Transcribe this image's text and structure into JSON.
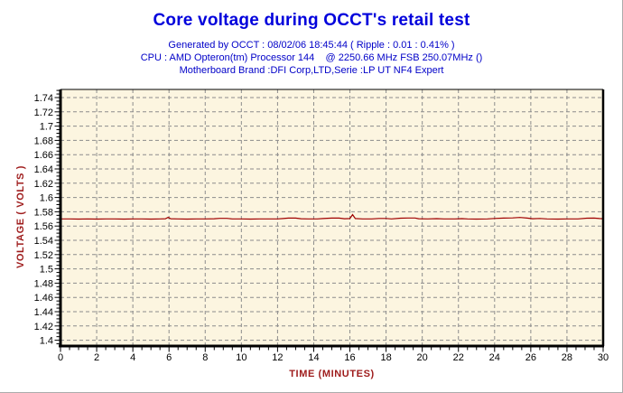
{
  "page": {
    "title": "Core voltage during OCCT's retail test",
    "subtitle_lines": [
      "Generated by OCCT : 08/02/06 18:45:44 ( Ripple : 0.01 : 0.41% )",
      "CPU : AMD Opteron(tm) Processor 144    @ 2250.66 MHz FSB 250.07MHz ()",
      "Motherboard Brand :DFI Corp,LTD,Serie :LP UT NF4 Expert"
    ]
  },
  "colors": {
    "title_blue": "#0000dc",
    "subtitle_blue": "#0000c8",
    "axis_label_red": "#9e1b1b",
    "line_red": "#a00000",
    "plot_background": "#fcf5e0",
    "gridline_gray": "#8c8c8c",
    "plot_border_black": "#000000",
    "page_border_gray": "#ababab"
  },
  "chart_data": {
    "type": "line",
    "title": "Core voltage during OCCT's retail test",
    "xlabel": "TIME (MINUTES)",
    "ylabel": "VOLTAGE ( VOLTS )",
    "xlim": [
      0,
      30
    ],
    "ylim": [
      1.392,
      1.751
    ],
    "grid": "both axes, gray dashed",
    "legend_position": "none",
    "x_ticks": [
      0,
      2,
      4,
      6,
      8,
      10,
      12,
      14,
      16,
      18,
      20,
      22,
      24,
      26,
      28,
      30
    ],
    "x_tick_labels": [
      "0",
      "2",
      "4",
      "6",
      "8",
      "10",
      "12",
      "14",
      "16",
      "18",
      "20",
      "22",
      "24",
      "26",
      "28",
      "30"
    ],
    "x_minor_step": 0.5,
    "y_ticks": [
      1.4,
      1.42,
      1.44,
      1.46,
      1.48,
      1.5,
      1.52,
      1.54,
      1.56,
      1.58,
      1.6,
      1.62,
      1.64,
      1.66,
      1.68,
      1.7,
      1.72,
      1.74
    ],
    "y_tick_labels": [
      "1.4",
      "1.42",
      "1.44",
      "1.46",
      "1.48",
      "1.5",
      "1.52",
      "1.54",
      "1.56",
      "1.58",
      "1.6",
      "1.62",
      "1.64",
      "1.66",
      "1.68",
      "1.7",
      "1.72",
      "1.74"
    ],
    "y_minor_step": 0.005,
    "series": [
      {
        "name": "Core voltage",
        "color": "#a00000",
        "points": [
          [
            0,
            1.57
          ],
          [
            0.5,
            1.57
          ],
          [
            1,
            1.5698
          ],
          [
            1.5,
            1.57
          ],
          [
            2,
            1.5698
          ],
          [
            2.5,
            1.57
          ],
          [
            3,
            1.57
          ],
          [
            3.5,
            1.5698
          ],
          [
            4,
            1.57
          ],
          [
            4.5,
            1.57
          ],
          [
            5,
            1.5698
          ],
          [
            5.5,
            1.57
          ],
          [
            5.8,
            1.5702
          ],
          [
            5.95,
            1.5722
          ],
          [
            6.1,
            1.5702
          ],
          [
            6.5,
            1.57
          ],
          [
            7,
            1.5698
          ],
          [
            7.5,
            1.57
          ],
          [
            8,
            1.57
          ],
          [
            8.5,
            1.5703
          ],
          [
            8.8,
            1.5708
          ],
          [
            9.2,
            1.5708
          ],
          [
            9.5,
            1.57
          ],
          [
            10,
            1.57
          ],
          [
            10.5,
            1.5698
          ],
          [
            11,
            1.57
          ],
          [
            11.5,
            1.57
          ],
          [
            12,
            1.57
          ],
          [
            12.3,
            1.5705
          ],
          [
            12.6,
            1.5712
          ],
          [
            13,
            1.5712
          ],
          [
            13.3,
            1.5702
          ],
          [
            13.7,
            1.57
          ],
          [
            14.2,
            1.57
          ],
          [
            14.5,
            1.5705
          ],
          [
            15,
            1.5712
          ],
          [
            15.4,
            1.5712
          ],
          [
            15.7,
            1.5703
          ],
          [
            16,
            1.5705
          ],
          [
            16.15,
            1.576
          ],
          [
            16.3,
            1.5705
          ],
          [
            16.7,
            1.57
          ],
          [
            17.2,
            1.57
          ],
          [
            17.6,
            1.5706
          ],
          [
            18,
            1.5706
          ],
          [
            18.3,
            1.57
          ],
          [
            18.8,
            1.571
          ],
          [
            19.2,
            1.5713
          ],
          [
            19.6,
            1.5713
          ],
          [
            19.8,
            1.5702
          ],
          [
            20.3,
            1.57
          ],
          [
            20.8,
            1.5704
          ],
          [
            21.2,
            1.57
          ],
          [
            21.8,
            1.57
          ],
          [
            22.2,
            1.5704
          ],
          [
            22.5,
            1.57
          ],
          [
            23,
            1.5698
          ],
          [
            23.6,
            1.57
          ],
          [
            24,
            1.5706
          ],
          [
            24.5,
            1.5712
          ],
          [
            25,
            1.5714
          ],
          [
            25.4,
            1.572
          ],
          [
            25.8,
            1.5712
          ],
          [
            26.1,
            1.5702
          ],
          [
            26.5,
            1.5706
          ],
          [
            26.9,
            1.57
          ],
          [
            27.5,
            1.5698
          ],
          [
            28,
            1.57
          ],
          [
            28.6,
            1.57
          ],
          [
            29.1,
            1.571
          ],
          [
            29.5,
            1.5712
          ],
          [
            29.8,
            1.5705
          ],
          [
            30,
            1.5702
          ]
        ]
      }
    ]
  }
}
